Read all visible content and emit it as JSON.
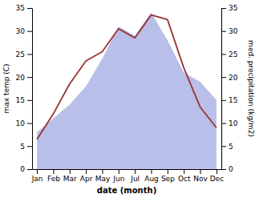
{
  "chart_data": {
    "type": "line",
    "xlabel": "date (month)",
    "ylabel": "max temp (C)",
    "y2label": "med. precipitation (kg/m2)",
    "categories": [
      "Jan",
      "Feb",
      "Mar",
      "Apr",
      "May",
      "Jun",
      "Jul",
      "Aug",
      "Sep",
      "Oct",
      "Nov",
      "Dec"
    ],
    "series": [
      {
        "type": "area",
        "axis": "y2",
        "color": "#b8bfe8",
        "values": [
          8,
          11,
          14,
          18,
          24,
          31,
          29,
          34,
          28,
          21,
          19,
          15
        ]
      },
      {
        "type": "line",
        "color": "#993333",
        "values": [
          6.5,
          12.0,
          18.5,
          23.5,
          25.5,
          30.5,
          28.5,
          33.5,
          32.5,
          22.0,
          13.5,
          9.0
        ]
      }
    ],
    "ylim": [
      0,
      35
    ],
    "yticks": [
      0,
      5,
      10,
      15,
      20,
      25,
      30,
      35
    ],
    "y2lim": [
      0,
      35
    ],
    "y2ticks": [
      0,
      5,
      10,
      15,
      20,
      25,
      30,
      35
    ],
    "grid": false
  }
}
